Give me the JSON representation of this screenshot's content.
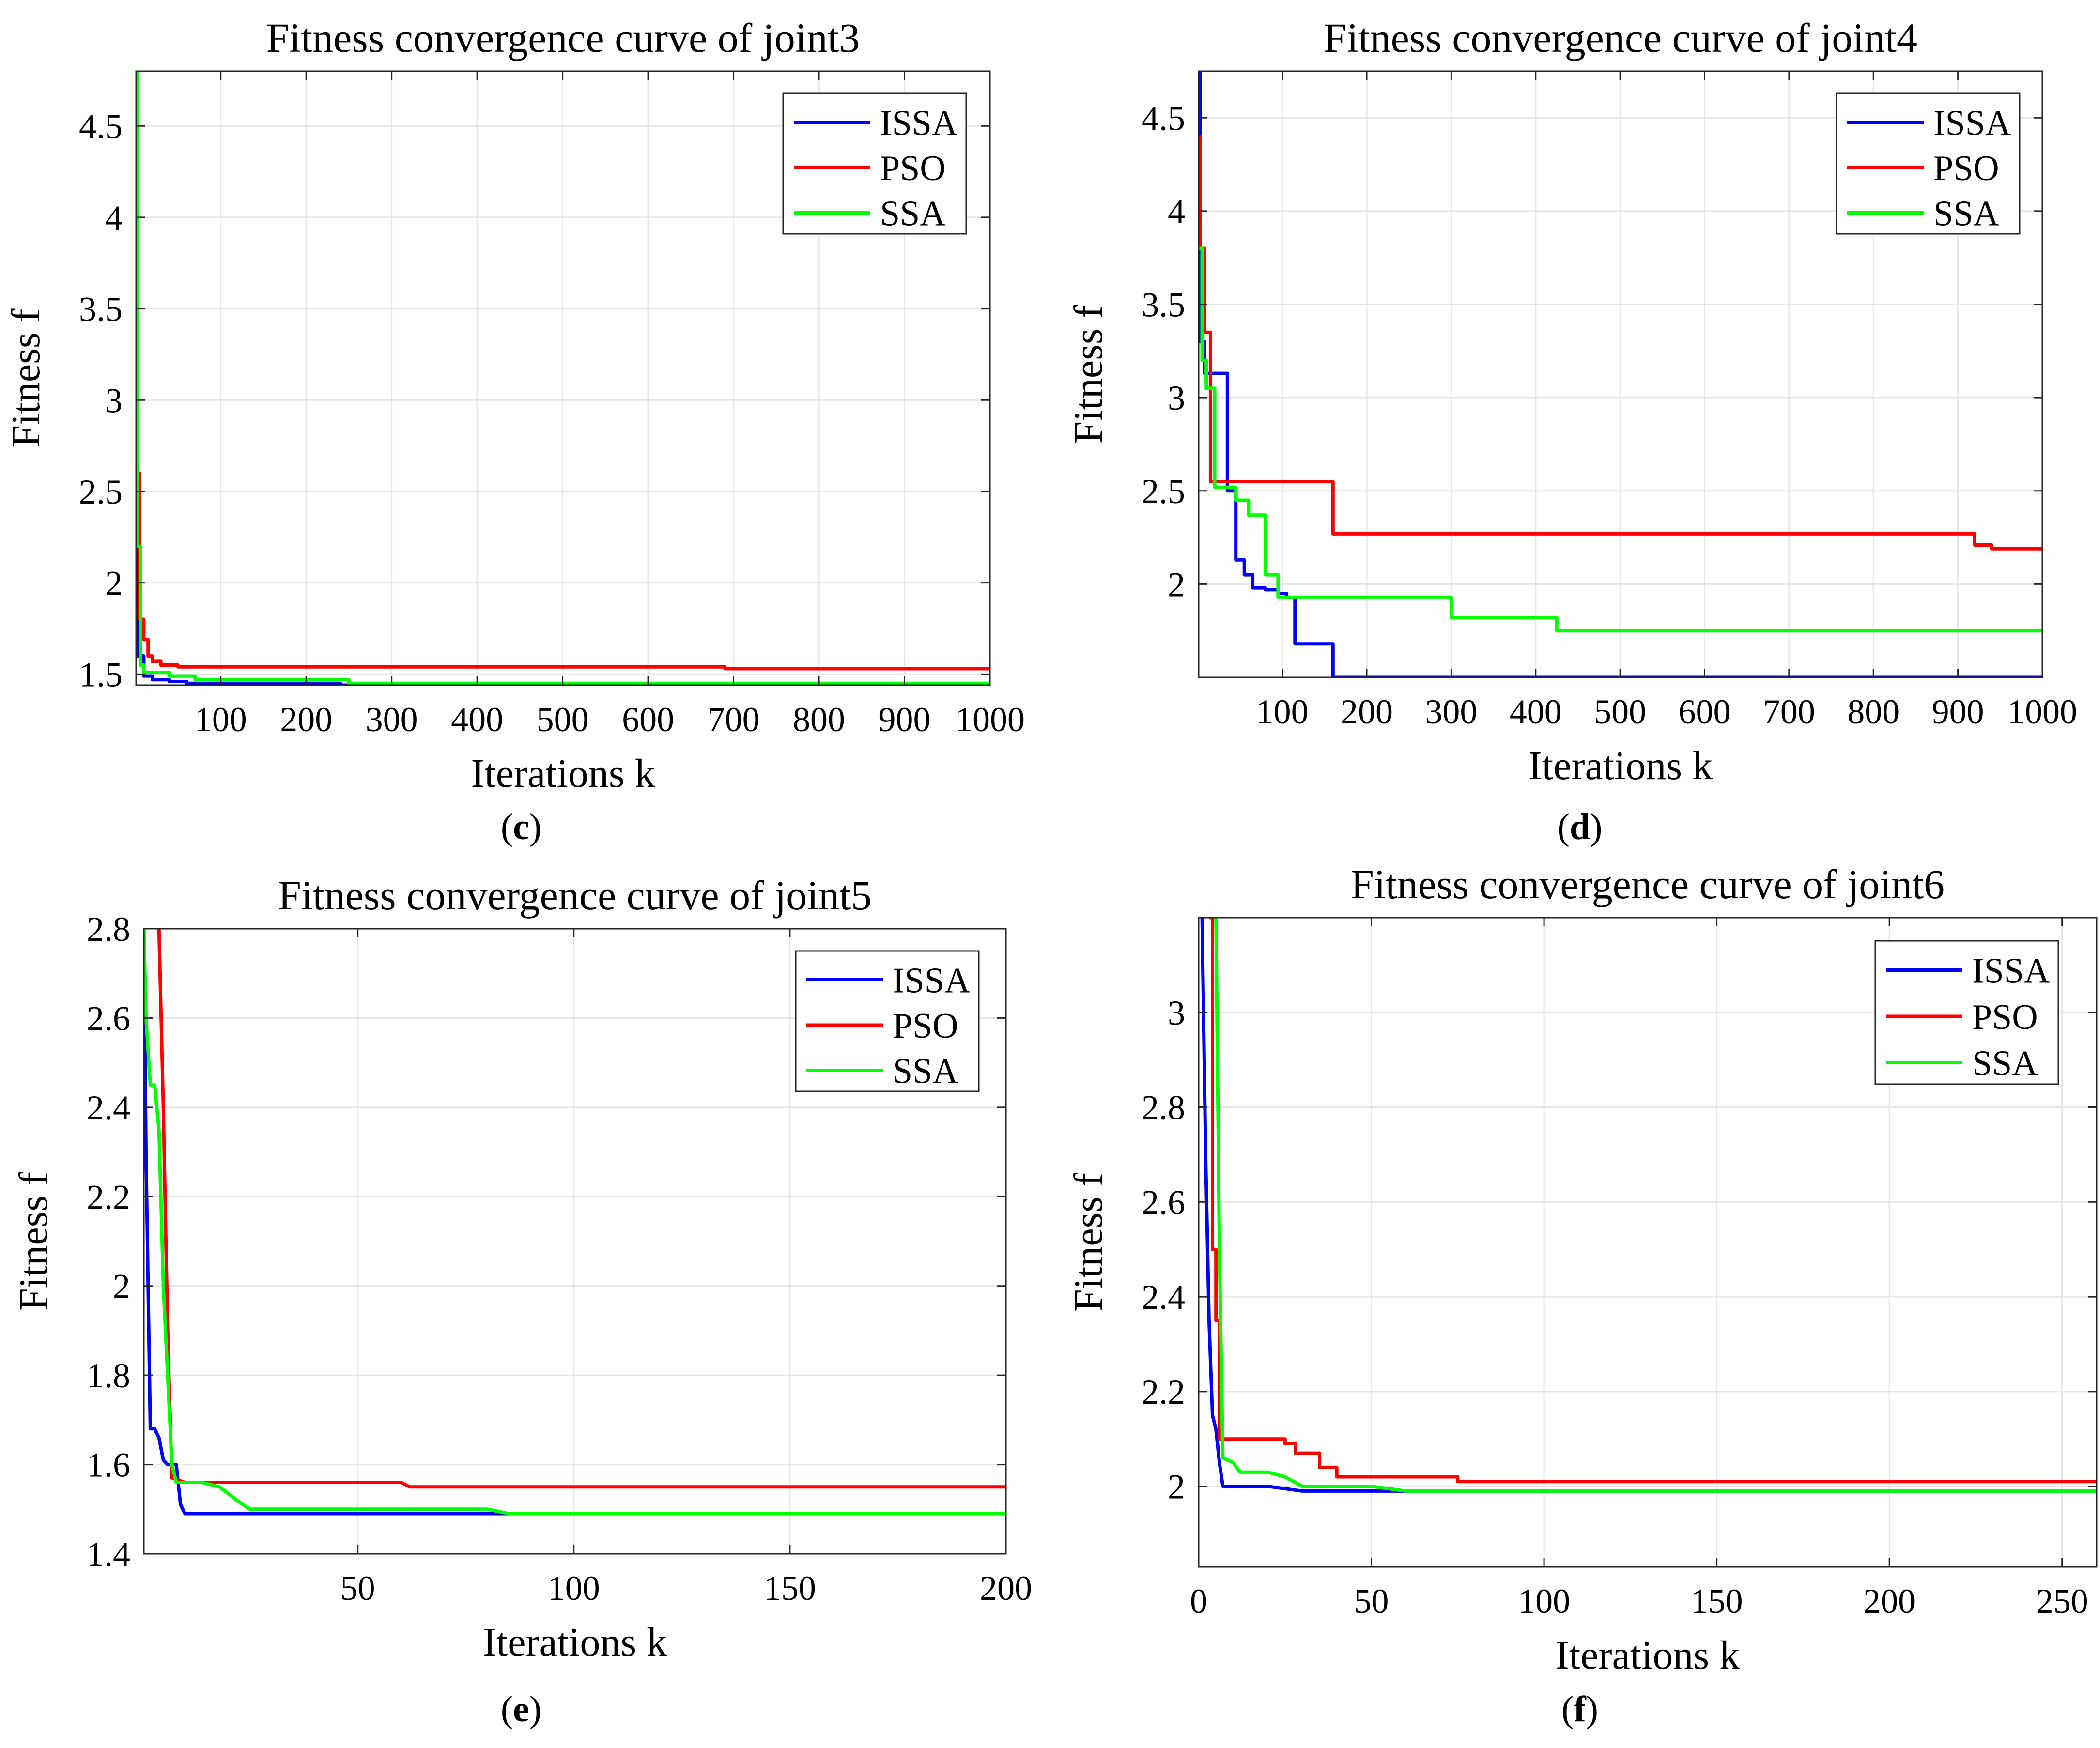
{
  "colors": {
    "ISSA": "#0000ff",
    "PSO": "#ff0000",
    "SSA": "#00ff00",
    "grid": "#e6e6e6",
    "axis": "#262626"
  },
  "panels": [
    {
      "letter": "c",
      "open": "(",
      "close": ")"
    },
    {
      "letter": "d",
      "open": "(",
      "close": ")"
    },
    {
      "letter": "e",
      "open": "(",
      "close": ")"
    },
    {
      "letter": "f",
      "open": "(",
      "close": ")"
    }
  ],
  "chart_data": [
    {
      "type": "line",
      "title": "Fitness convergence curve of joint3",
      "xlabel": "Iterations k",
      "ylabel": "Fitness f",
      "xlim": [
        1,
        1000
      ],
      "ylim": [
        1.44,
        4.8
      ],
      "xticks": [
        100,
        200,
        300,
        400,
        500,
        600,
        700,
        800,
        900,
        1000
      ],
      "yticks": [
        1.5,
        2,
        2.5,
        3,
        3.5,
        4,
        4.5
      ],
      "ytick_labels": [
        "1.5",
        "2",
        "2.5",
        "3",
        "3.5",
        "4",
        "4.5"
      ],
      "grid": true,
      "legend_position": "top-right",
      "series": [
        {
          "name": "ISSA",
          "step": true,
          "x": [
            1,
            3,
            10,
            20,
            40,
            60,
            240,
            1000
          ],
          "y": [
            4.5,
            1.6,
            1.49,
            1.47,
            1.46,
            1.45,
            1.44,
            1.44
          ]
        },
        {
          "name": "PSO",
          "step": true,
          "x": [
            1,
            5,
            10,
            15,
            20,
            30,
            50,
            690,
            1000
          ],
          "y": [
            2.6,
            1.8,
            1.69,
            1.6,
            1.57,
            1.55,
            1.54,
            1.53,
            1.53
          ]
        },
        {
          "name": "SSA",
          "step": true,
          "x": [
            1,
            3,
            6,
            10,
            40,
            70,
            250,
            1000
          ],
          "y": [
            4.8,
            2.2,
            1.55,
            1.51,
            1.49,
            1.47,
            1.45,
            1.45
          ]
        }
      ]
    },
    {
      "type": "line",
      "title": "Fitness convergence curve of joint4",
      "xlabel": "Iterations k",
      "ylabel": "Fitness f",
      "xlim": [
        1,
        1000
      ],
      "ylim": [
        1.5,
        4.75
      ],
      "xticks": [
        100,
        200,
        300,
        400,
        500,
        600,
        700,
        800,
        900,
        1000
      ],
      "yticks": [
        2,
        2.5,
        3,
        3.5,
        4,
        4.5
      ],
      "ytick_labels": [
        "2",
        "2.5",
        "3",
        "3.5",
        "4",
        "4.5"
      ],
      "grid": true,
      "legend_position": "top-right",
      "series": [
        {
          "name": "ISSA",
          "step": true,
          "x": [
            1,
            3,
            8,
            35,
            45,
            55,
            65,
            80,
            95,
            105,
            115,
            160,
            1000
          ],
          "y": [
            4.75,
            3.3,
            3.13,
            2.5,
            2.13,
            2.05,
            1.98,
            1.97,
            1.95,
            1.93,
            1.68,
            1.5,
            1.5
          ]
        },
        {
          "name": "PSO",
          "step": true,
          "x": [
            1,
            3,
            8,
            15,
            160,
            920,
            940,
            1000
          ],
          "y": [
            4.4,
            3.8,
            3.35,
            2.55,
            2.27,
            2.21,
            2.19,
            2.19
          ]
        },
        {
          "name": "SSA",
          "step": true,
          "x": [
            1,
            5,
            10,
            20,
            45,
            60,
            80,
            95,
            300,
            425,
            1000
          ],
          "y": [
            3.8,
            3.2,
            3.05,
            2.52,
            2.45,
            2.37,
            2.05,
            1.93,
            1.82,
            1.75,
            1.75
          ]
        }
      ]
    },
    {
      "type": "line",
      "title": "Fitness convergence curve of joint5",
      "xlabel": "Iterations k",
      "ylabel": "Fitness f",
      "xlim": [
        0.5,
        200
      ],
      "ylim": [
        1.4,
        2.8
      ],
      "xticks": [
        50,
        100,
        150,
        200
      ],
      "yticks": [
        1.4,
        1.6,
        1.8,
        2,
        2.2,
        2.4,
        2.6,
        2.8
      ],
      "ytick_labels": [
        "1.4",
        "1.6",
        "1.8",
        "2",
        "2.2",
        "2.4",
        "2.6",
        "2.8"
      ],
      "grid": true,
      "legend_position": "top-right",
      "series": [
        {
          "name": "ISSA",
          "step": false,
          "x": [
            0.5,
            1,
            2,
            3,
            4,
            5,
            6,
            8,
            9,
            10,
            200
          ],
          "y": [
            2.8,
            2.3,
            1.68,
            1.68,
            1.66,
            1.61,
            1.6,
            1.6,
            1.51,
            1.49,
            1.49
          ]
        },
        {
          "name": "PSO",
          "step": false,
          "x": [
            4,
            5,
            6,
            7,
            10,
            60,
            62,
            200
          ],
          "y": [
            2.8,
            2.4,
            1.9,
            1.57,
            1.56,
            1.56,
            1.55,
            1.55
          ]
        },
        {
          "name": "SSA",
          "step": false,
          "x": [
            0.5,
            1,
            2,
            3,
            4,
            5,
            7,
            8,
            14,
            18,
            22,
            25,
            80,
            85,
            200
          ],
          "y": [
            2.8,
            2.6,
            2.45,
            2.45,
            2.35,
            2.0,
            1.6,
            1.56,
            1.56,
            1.55,
            1.52,
            1.5,
            1.5,
            1.49,
            1.49
          ]
        }
      ]
    },
    {
      "type": "line",
      "title": "Fitness convergence curve of joint6",
      "xlabel": "Iterations k",
      "ylabel": "Fitness f",
      "xlim": [
        0,
        260
      ],
      "ylim": [
        1.83,
        3.2
      ],
      "xticks": [
        0,
        50,
        100,
        150,
        200,
        250
      ],
      "yticks": [
        2,
        2.2,
        2.4,
        2.6,
        2.8,
        3
      ],
      "ytick_labels": [
        "2",
        "2.2",
        "2.4",
        "2.6",
        "2.8",
        "3"
      ],
      "grid": true,
      "legend_position": "top-right",
      "series": [
        {
          "name": "ISSA",
          "step": false,
          "x": [
            1,
            2,
            3,
            4,
            5,
            6,
            7,
            20,
            30,
            260
          ],
          "y": [
            3.2,
            2.7,
            2.35,
            2.15,
            2.12,
            2.05,
            2.0,
            2.0,
            1.99,
            1.99
          ]
        },
        {
          "name": "PSO",
          "step": true,
          "x": [
            3,
            4,
            5,
            6,
            25,
            28,
            35,
            40,
            58,
            75,
            260
          ],
          "y": [
            3.2,
            2.5,
            2.35,
            2.1,
            2.09,
            2.07,
            2.04,
            2.02,
            2.02,
            2.01,
            2.01
          ]
        },
        {
          "name": "SSA",
          "step": false,
          "x": [
            5,
            6,
            7,
            10,
            12,
            20,
            25,
            30,
            50,
            60,
            260
          ],
          "y": [
            3.2,
            2.5,
            2.06,
            2.05,
            2.03,
            2.03,
            2.02,
            2.0,
            2.0,
            1.99,
            1.99
          ]
        }
      ]
    }
  ]
}
